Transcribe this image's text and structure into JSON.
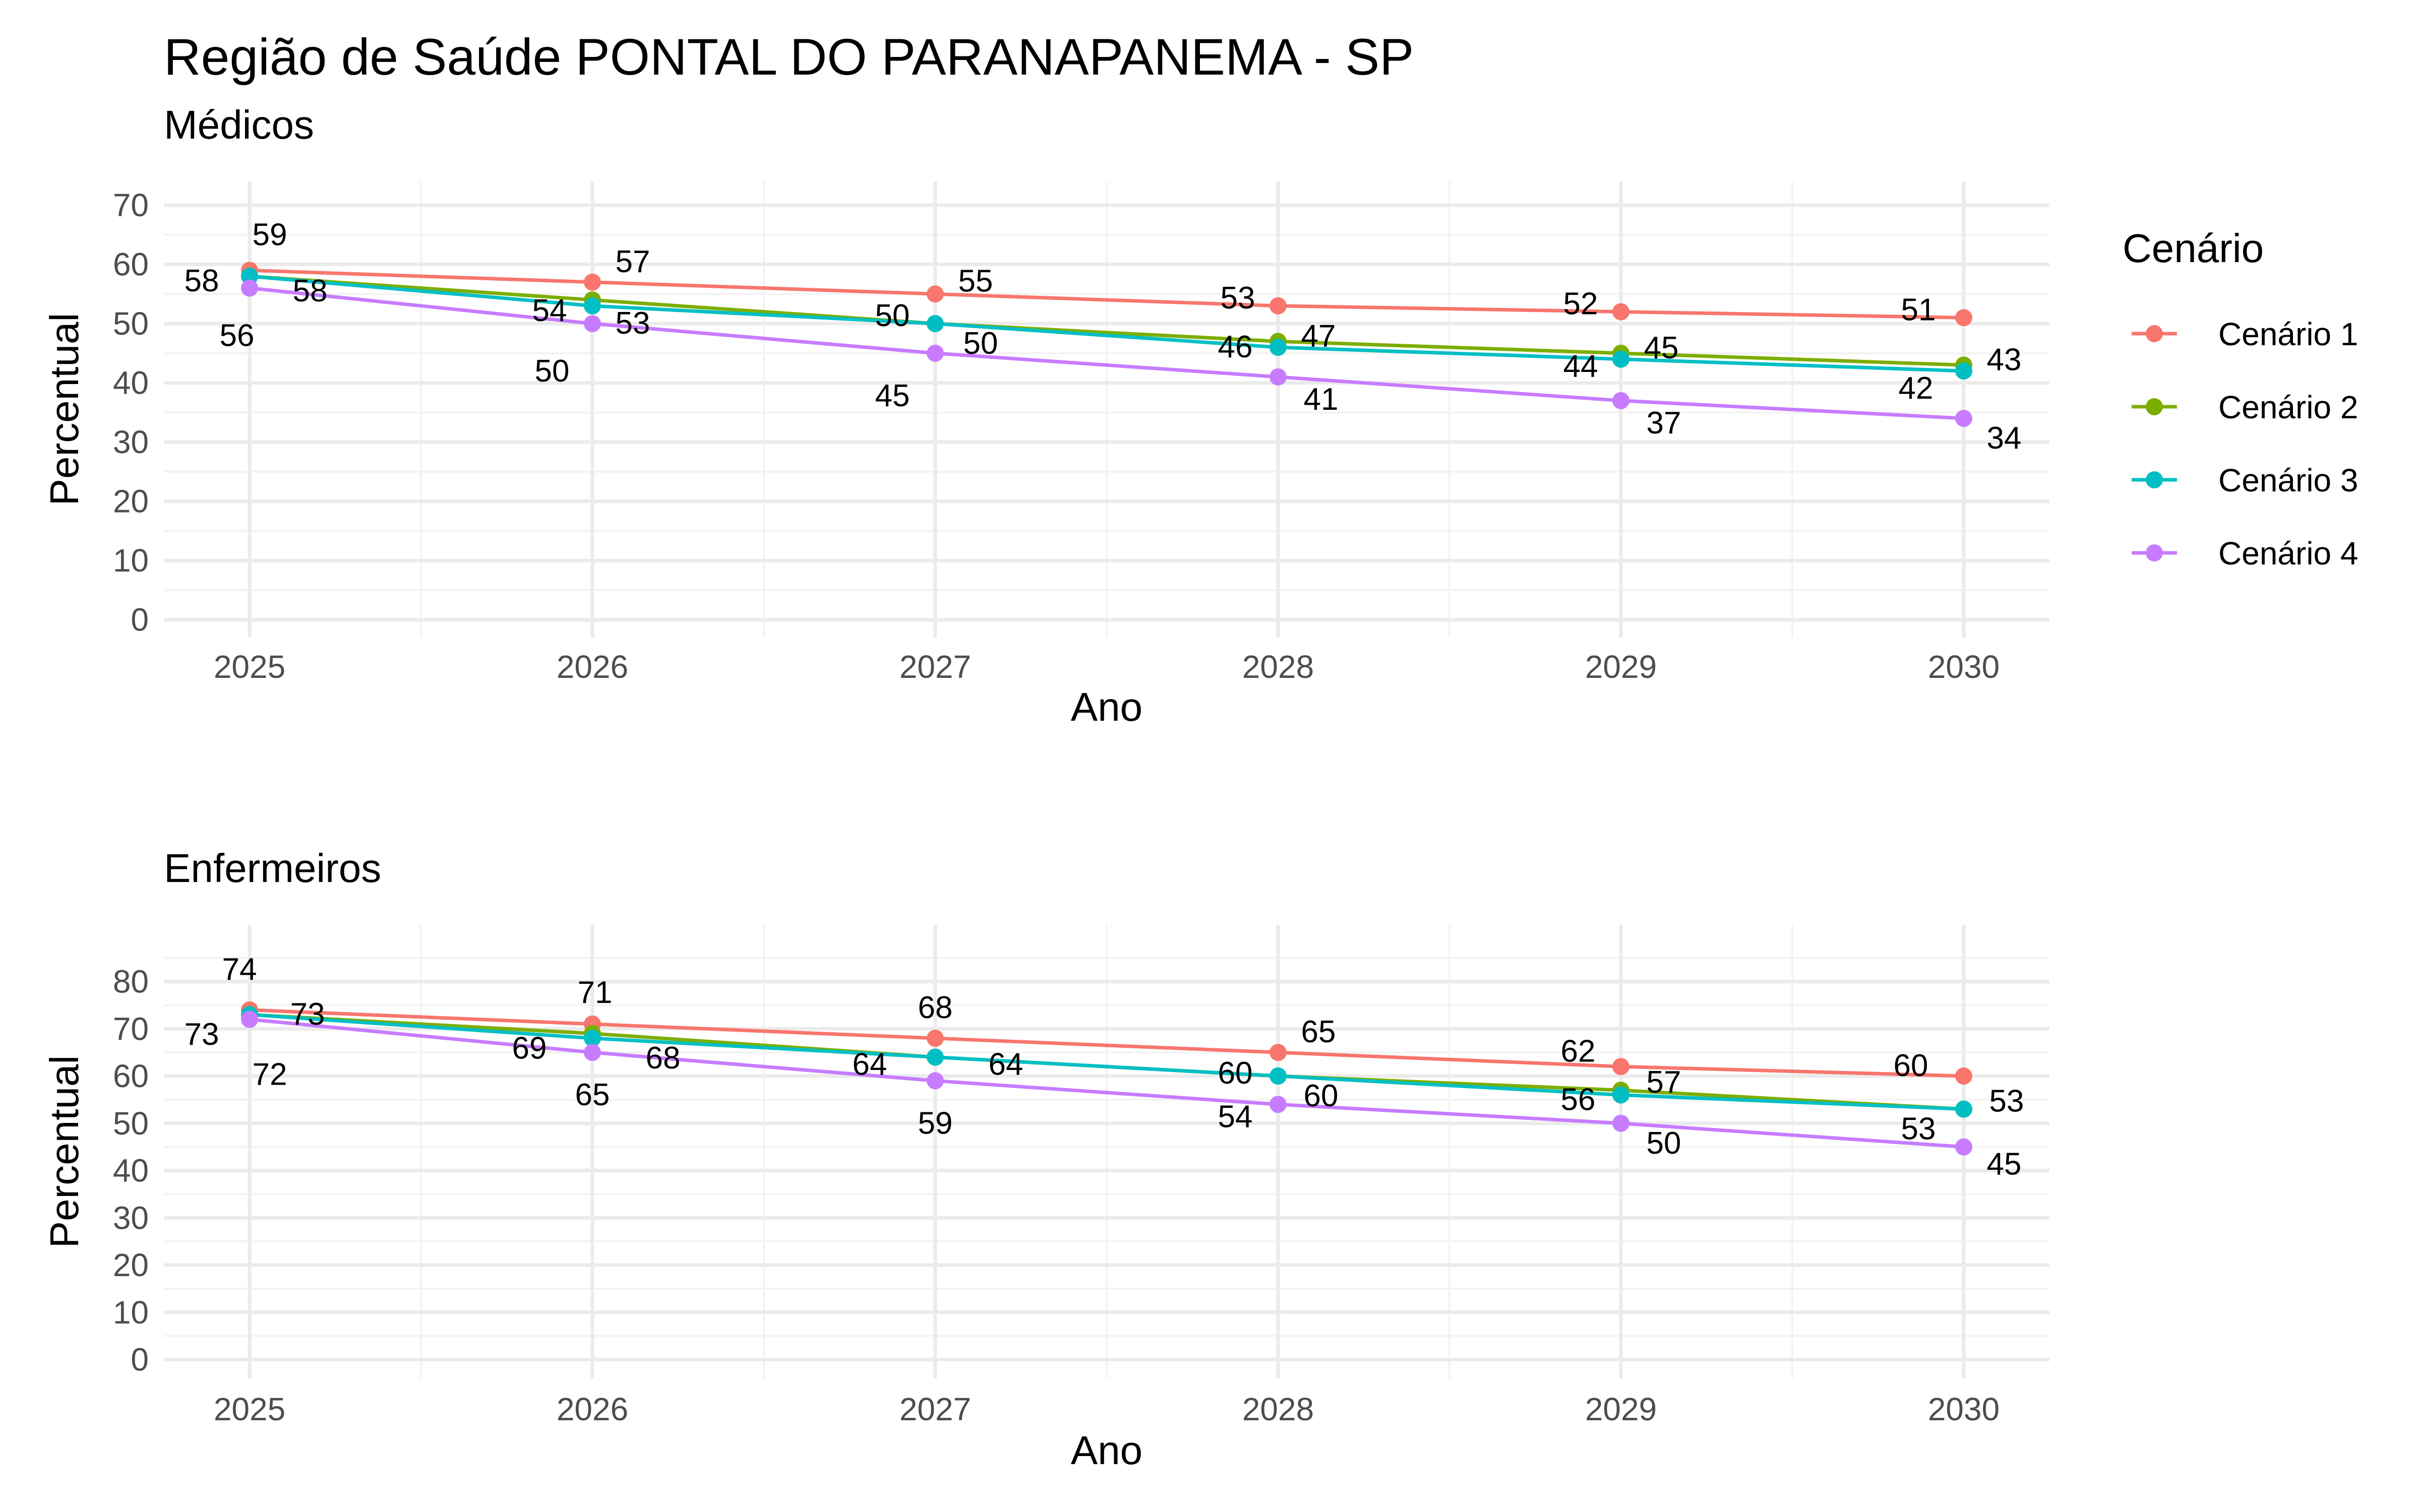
{
  "title": "Região de Saúde PONTAL DO PARANAPANEMA - SP",
  "legend": {
    "title": "Cenário",
    "placement": "right",
    "items": [
      {
        "label": "Cenário 1",
        "color": "#F8766D"
      },
      {
        "label": "Cenário 2",
        "color": "#7CAE00"
      },
      {
        "label": "Cenário 3",
        "color": "#00BFC4"
      },
      {
        "label": "Cenário 4",
        "color": "#C77CFF"
      }
    ]
  },
  "chart_data": [
    {
      "type": "line",
      "subtitle": "Médicos",
      "xlabel": "Ano",
      "ylabel": "Percentual",
      "x": [
        2025,
        2026,
        2027,
        2028,
        2029,
        2030
      ],
      "x_ticks": [
        "2025",
        "2026",
        "2027",
        "2028",
        "2029",
        "2030"
      ],
      "y_ticks": [
        "0",
        "10",
        "20",
        "30",
        "40",
        "50",
        "60",
        "70"
      ],
      "ylim": [
        -3,
        74
      ],
      "grid": true,
      "series": [
        {
          "name": "Cenário 1",
          "color": "#F8766D",
          "values": [
            59,
            57,
            55,
            53,
            52,
            51
          ],
          "labels": [
            "59",
            "57",
            "55",
            "53",
            "52",
            "51"
          ]
        },
        {
          "name": "Cenário 2",
          "color": "#7CAE00",
          "values": [
            58,
            54,
            50,
            47,
            45,
            43
          ],
          "labels": [
            "58",
            "54",
            "50",
            "47",
            "45",
            "43"
          ]
        },
        {
          "name": "Cenário 3",
          "color": "#00BFC4",
          "values": [
            58,
            53,
            50,
            46,
            44,
            42
          ],
          "labels": [
            "58",
            "53",
            "50",
            "46",
            "44",
            "42"
          ]
        },
        {
          "name": "Cenário 4",
          "color": "#C77CFF",
          "values": [
            56,
            50,
            45,
            41,
            37,
            34
          ],
          "labels": [
            "56",
            "50",
            "45",
            "41",
            "37",
            "34"
          ]
        }
      ]
    },
    {
      "type": "line",
      "subtitle": "Enfermeiros",
      "xlabel": "Ano",
      "ylabel": "Percentual",
      "x": [
        2025,
        2026,
        2027,
        2028,
        2029,
        2030
      ],
      "x_ticks": [
        "2025",
        "2026",
        "2027",
        "2028",
        "2029",
        "2030"
      ],
      "y_ticks": [
        "0",
        "10",
        "20",
        "30",
        "40",
        "50",
        "60",
        "70",
        "80"
      ],
      "ylim": [
        -4,
        92
      ],
      "grid": true,
      "series": [
        {
          "name": "Cenário 1",
          "color": "#F8766D",
          "values": [
            74,
            71,
            68,
            65,
            62,
            60
          ],
          "labels": [
            "74",
            "71",
            "68",
            "65",
            "62",
            "60"
          ]
        },
        {
          "name": "Cenário 2",
          "color": "#7CAE00",
          "values": [
            73,
            69,
            64,
            60,
            57,
            53
          ],
          "labels": [
            "73",
            "69",
            "64",
            "60",
            "57",
            "53"
          ]
        },
        {
          "name": "Cenário 3",
          "color": "#00BFC4",
          "values": [
            73,
            68,
            64,
            60,
            56,
            53
          ],
          "labels": [
            "73",
            "68",
            "64",
            "60",
            "56",
            "53"
          ]
        },
        {
          "name": "Cenário 4",
          "color": "#C77CFF",
          "values": [
            72,
            65,
            59,
            54,
            50,
            45
          ],
          "labels": [
            "72",
            "65",
            "59",
            "54",
            "50",
            "45"
          ]
        }
      ]
    }
  ]
}
